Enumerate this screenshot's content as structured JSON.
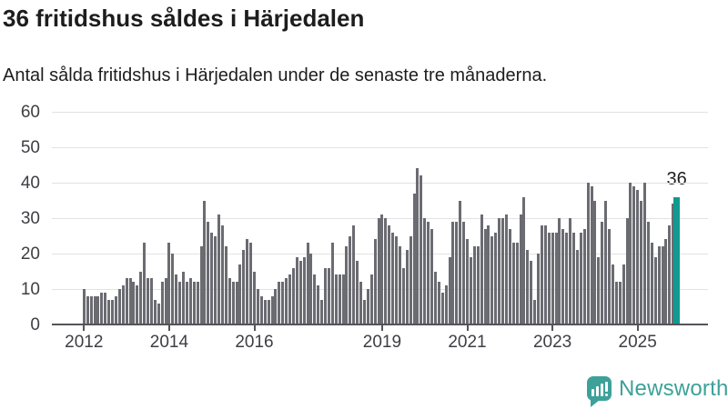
{
  "header": {
    "title": "36 fritidshus såldes i Härjedalen",
    "subtitle": "Antal sålda fritidshus i Härjedalen under de senaste tre månaderna."
  },
  "chart_data": {
    "type": "bar",
    "title": "36 fritidshus såldes i Härjedalen",
    "subtitle": "Antal sålda fritidshus i Härjedalen under de senaste tre månaderna.",
    "x_start_year": 2012,
    "x_frequency": "monthly",
    "values": [
      10,
      8,
      8,
      8,
      8,
      9,
      9,
      7,
      7,
      8,
      10,
      11,
      13,
      13,
      12,
      11,
      15,
      23,
      13,
      13,
      7,
      6,
      12,
      13,
      23,
      20,
      14,
      12,
      15,
      12,
      13,
      12,
      12,
      22,
      35,
      29,
      26,
      25,
      31,
      28,
      22,
      13,
      12,
      12,
      17,
      21,
      24,
      23,
      15,
      10,
      8,
      7,
      7,
      8,
      10,
      12,
      12,
      13,
      14,
      16,
      19,
      18,
      19,
      23,
      20,
      14,
      11,
      7,
      16,
      16,
      23,
      14,
      14,
      14,
      22,
      25,
      28,
      18,
      12,
      7,
      10,
      14,
      24,
      30,
      31,
      30,
      28,
      26,
      25,
      22,
      16,
      21,
      25,
      37,
      44,
      42,
      30,
      29,
      27,
      15,
      12,
      9,
      11,
      19,
      29,
      29,
      35,
      29,
      24,
      19,
      22,
      22,
      31,
      27,
      28,
      25,
      26,
      30,
      30,
      31,
      27,
      23,
      23,
      31,
      36,
      21,
      18,
      7,
      20,
      28,
      28,
      26,
      26,
      26,
      30,
      27,
      26,
      30,
      26,
      21,
      26,
      27,
      40,
      39,
      35,
      19,
      29,
      35,
      27,
      17,
      12,
      12,
      17,
      30,
      40,
      39,
      38,
      35,
      40,
      29,
      23,
      19,
      22,
      22,
      24,
      28,
      34,
      36
    ],
    "highlight_last": {
      "label": "36",
      "value": 36
    },
    "xticks": [
      {
        "label": "2012",
        "month_index": 0
      },
      {
        "label": "2014",
        "month_index": 24
      },
      {
        "label": "2016",
        "month_index": 48
      },
      {
        "label": "2019",
        "month_index": 84
      },
      {
        "label": "2021",
        "month_index": 108
      },
      {
        "label": "2023",
        "month_index": 132
      },
      {
        "label": "2025",
        "month_index": 156
      }
    ],
    "yticks": [
      0,
      10,
      20,
      30,
      40,
      50,
      60
    ],
    "ylim": [
      0,
      60
    ],
    "grid": true,
    "legend": false,
    "colors": {
      "bar": "#6b6b72",
      "highlight": "#109a90",
      "grid": "#e2e2e4",
      "axis": "#54545a",
      "tick_label": "#3e3e44",
      "annotation": "#1d1d1d"
    }
  },
  "footer": {
    "brand": "Newsworthy",
    "logo_color": "#3da199"
  }
}
